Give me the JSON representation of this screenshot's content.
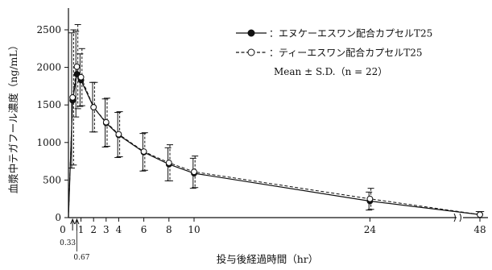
{
  "chart_data": {
    "type": "line",
    "xlabel": "投与後経過時間（hr）",
    "ylabel": "血漿中テガフール濃度（ng/mL）",
    "ylim": [
      0,
      2700
    ],
    "x_axis_break_between": [
      24,
      48
    ],
    "x_ticks": [
      {
        "value": 0,
        "label": "0"
      },
      {
        "value": 0.33,
        "label": "0.33",
        "arrow": true
      },
      {
        "value": 0.67,
        "label": "0.67",
        "arrow": true
      },
      {
        "value": 1,
        "label": "1"
      },
      {
        "value": 2,
        "label": "2"
      },
      {
        "value": 3,
        "label": "3"
      },
      {
        "value": 4,
        "label": "4"
      },
      {
        "value": 6,
        "label": "6"
      },
      {
        "value": 8,
        "label": "8"
      },
      {
        "value": 10,
        "label": "10"
      },
      {
        "value": 24,
        "label": "24"
      },
      {
        "value": 48,
        "label": "48"
      }
    ],
    "y_ticks": [
      0,
      500,
      1000,
      1500,
      2000,
      2500
    ],
    "legend_note": "Mean ± S.D.（n = 22）",
    "legend_position": "top-right",
    "series": [
      {
        "name": "：エヌケーエスワン配合カプセルT25",
        "marker": "filled-circle",
        "line_style": "solid",
        "color": "#111111",
        "points": [
          {
            "x": 0,
            "y": 0,
            "sd": 0
          },
          {
            "x": 0.33,
            "y": 1560,
            "sd": 900
          },
          {
            "x": 0.67,
            "y": 1910,
            "sd": 570
          },
          {
            "x": 1,
            "y": 1830,
            "sd": 350
          },
          {
            "x": 2,
            "y": 1470,
            "sd": 330
          },
          {
            "x": 3,
            "y": 1260,
            "sd": 320
          },
          {
            "x": 4,
            "y": 1100,
            "sd": 300
          },
          {
            "x": 6,
            "y": 870,
            "sd": 250
          },
          {
            "x": 8,
            "y": 710,
            "sd": 220
          },
          {
            "x": 10,
            "y": 590,
            "sd": 200
          },
          {
            "x": 24,
            "y": 220,
            "sd": 120
          },
          {
            "x": 48,
            "y": 40,
            "sd": 40
          }
        ]
      },
      {
        "name": "：ティーエスワン配合カプセルT25",
        "marker": "open-circle",
        "line_style": "dashed",
        "color": "#111111",
        "points": [
          {
            "x": 0,
            "y": 0,
            "sd": 0
          },
          {
            "x": 0.33,
            "y": 1600,
            "sd": 900
          },
          {
            "x": 0.67,
            "y": 2010,
            "sd": 560
          },
          {
            "x": 1,
            "y": 1870,
            "sd": 380
          },
          {
            "x": 2,
            "y": 1470,
            "sd": 330
          },
          {
            "x": 3,
            "y": 1270,
            "sd": 320
          },
          {
            "x": 4,
            "y": 1110,
            "sd": 300
          },
          {
            "x": 6,
            "y": 880,
            "sd": 250
          },
          {
            "x": 8,
            "y": 730,
            "sd": 240
          },
          {
            "x": 10,
            "y": 610,
            "sd": 210
          },
          {
            "x": 24,
            "y": 250,
            "sd": 140
          },
          {
            "x": 48,
            "y": 40,
            "sd": 40
          }
        ]
      }
    ]
  }
}
